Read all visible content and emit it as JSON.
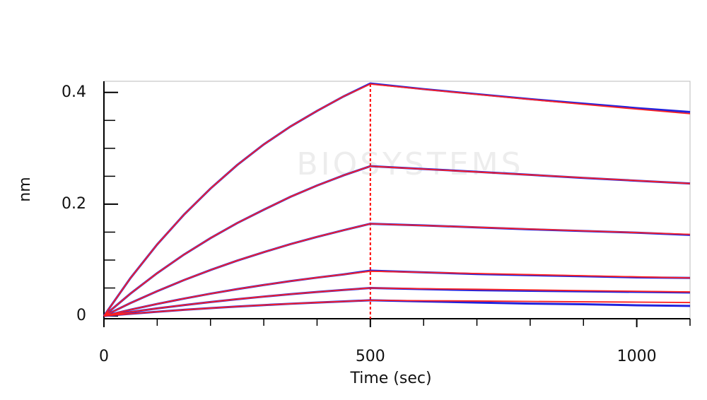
{
  "chart_data": {
    "type": "line",
    "ylabel": "nm",
    "xlabel": "Time (sec)",
    "watermark": "BIOSYSTEMS",
    "x": [
      0,
      50,
      100,
      150,
      200,
      250,
      300,
      350,
      400,
      450,
      500,
      600,
      700,
      800,
      900,
      1000,
      1100
    ],
    "xlim": [
      0,
      1100
    ],
    "ylim": [
      -0.005,
      0.42
    ],
    "xticks": [
      0,
      500,
      1000
    ],
    "yticks": [
      0,
      0.2,
      0.4
    ],
    "xminor": [
      100,
      200,
      300,
      400,
      600,
      700,
      800,
      900,
      1100
    ],
    "yminor": [
      0.05,
      0.1,
      0.15,
      0.25,
      0.3,
      0.35
    ],
    "vline": {
      "x": 500,
      "color": "#ff0000"
    },
    "series": [
      {
        "color": "#2222dd",
        "values": [
          0,
          0.068,
          0.128,
          0.181,
          0.228,
          0.27,
          0.307,
          0.339,
          0.367,
          0.393,
          0.416,
          0.406,
          0.397,
          0.388,
          0.38,
          0.372,
          0.365
        ]
      },
      {
        "color": "#2222dd",
        "values": [
          0,
          0.0401,
          0.0766,
          0.1097,
          0.1393,
          0.1662,
          0.1901,
          0.2132,
          0.2334,
          0.2517,
          0.268,
          0.263,
          0.258,
          0.2525,
          0.247,
          0.242,
          0.237
        ]
      },
      {
        "color": "#2222dd",
        "values": [
          0,
          0.0231,
          0.0444,
          0.0641,
          0.0822,
          0.099,
          0.1142,
          0.1285,
          0.1415,
          0.1535,
          0.165,
          0.162,
          0.1585,
          0.155,
          0.152,
          0.149,
          0.145
        ]
      },
      {
        "color": "#2222dd",
        "values": [
          0,
          0.0112,
          0.0215,
          0.031,
          0.0398,
          0.048,
          0.0554,
          0.0623,
          0.0686,
          0.0744,
          0.081,
          0.078,
          0.075,
          0.073,
          0.071,
          0.069,
          0.068
        ]
      },
      {
        "color": "#2222dd",
        "values": [
          0,
          0.007,
          0.0135,
          0.0194,
          0.0249,
          0.03,
          0.0346,
          0.039,
          0.0429,
          0.0465,
          0.05,
          0.048,
          0.046,
          0.045,
          0.044,
          0.043,
          0.042
        ]
      },
      {
        "color": "#2222dd",
        "values": [
          0,
          0.0039,
          0.0075,
          0.0109,
          0.0139,
          0.0168,
          0.0194,
          0.0218,
          0.024,
          0.026,
          0.028,
          0.026,
          0.024,
          0.022,
          0.021,
          0.019,
          0.018
        ]
      },
      {
        "color": "#ff2020",
        "values": [
          0,
          0.068,
          0.128,
          0.181,
          0.228,
          0.27,
          0.307,
          0.339,
          0.367,
          0.393,
          0.415,
          0.4056,
          0.3964,
          0.3875,
          0.3787,
          0.3702,
          0.362
        ]
      },
      {
        "color": "#ff2020",
        "values": [
          0,
          0.0401,
          0.0766,
          0.1097,
          0.1393,
          0.1662,
          0.1901,
          0.2132,
          0.2334,
          0.2517,
          0.268,
          0.2628,
          0.2577,
          0.2525,
          0.2473,
          0.2422,
          0.237
        ]
      },
      {
        "color": "#ff2020",
        "values": [
          0,
          0.0231,
          0.0444,
          0.0641,
          0.0822,
          0.099,
          0.1142,
          0.1285,
          0.1415,
          0.1535,
          0.165,
          0.1618,
          0.1587,
          0.1555,
          0.1523,
          0.1492,
          0.146
        ]
      },
      {
        "color": "#ff2020",
        "values": [
          0,
          0.0112,
          0.0215,
          0.031,
          0.0398,
          0.048,
          0.0554,
          0.0623,
          0.0686,
          0.0744,
          0.08,
          0.078,
          0.076,
          0.074,
          0.072,
          0.07,
          0.068
        ]
      },
      {
        "color": "#ff2020",
        "values": [
          0,
          0.007,
          0.0135,
          0.0194,
          0.0249,
          0.03,
          0.0346,
          0.039,
          0.0429,
          0.0465,
          0.05,
          0.0488,
          0.0477,
          0.0465,
          0.0453,
          0.0442,
          0.043
        ]
      },
      {
        "color": "#ff2020",
        "values": [
          0,
          0.0039,
          0.0075,
          0.0109,
          0.0139,
          0.0168,
          0.0194,
          0.0218,
          0.024,
          0.026,
          0.028,
          0.0273,
          0.0267,
          0.026,
          0.0253,
          0.0247,
          0.024
        ]
      }
    ]
  }
}
